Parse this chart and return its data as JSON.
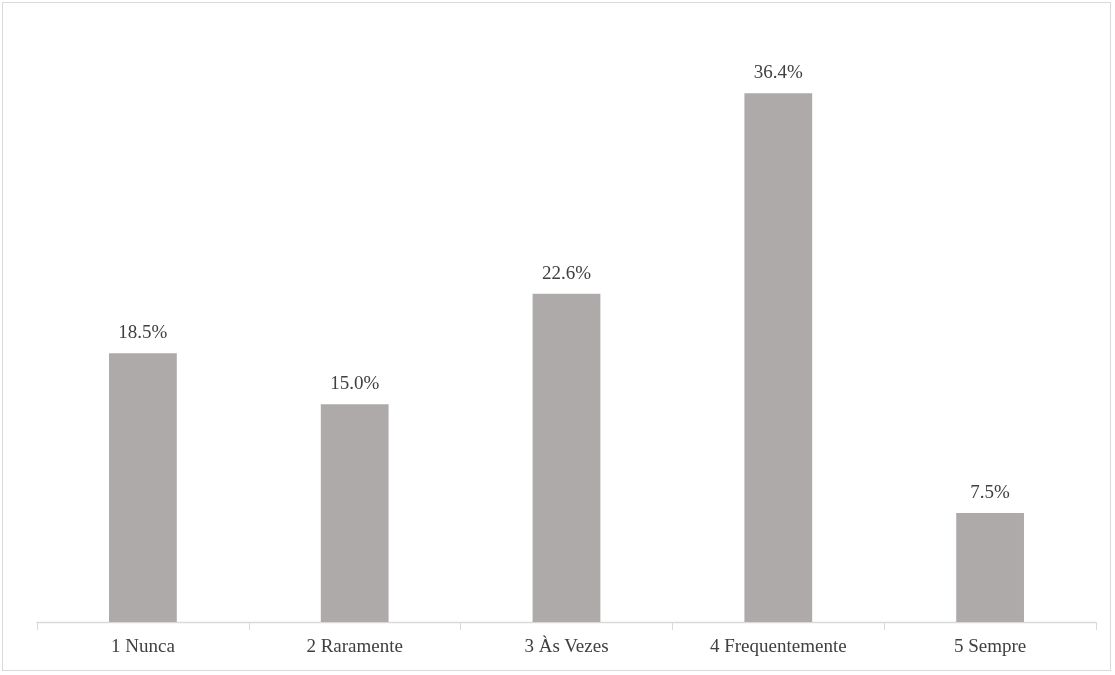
{
  "chart_data": {
    "type": "bar",
    "categories": [
      "1 Nunca",
      "2 Raramente",
      "3 Às Vezes",
      "4 Frequentemente",
      "5 Sempre"
    ],
    "values": [
      18.5,
      15.0,
      22.6,
      36.4,
      7.5
    ],
    "value_labels": [
      "18.5%",
      "15.0%",
      "22.6%",
      "36.4%",
      "7.5%"
    ],
    "color": "#aeaaaa"
  }
}
